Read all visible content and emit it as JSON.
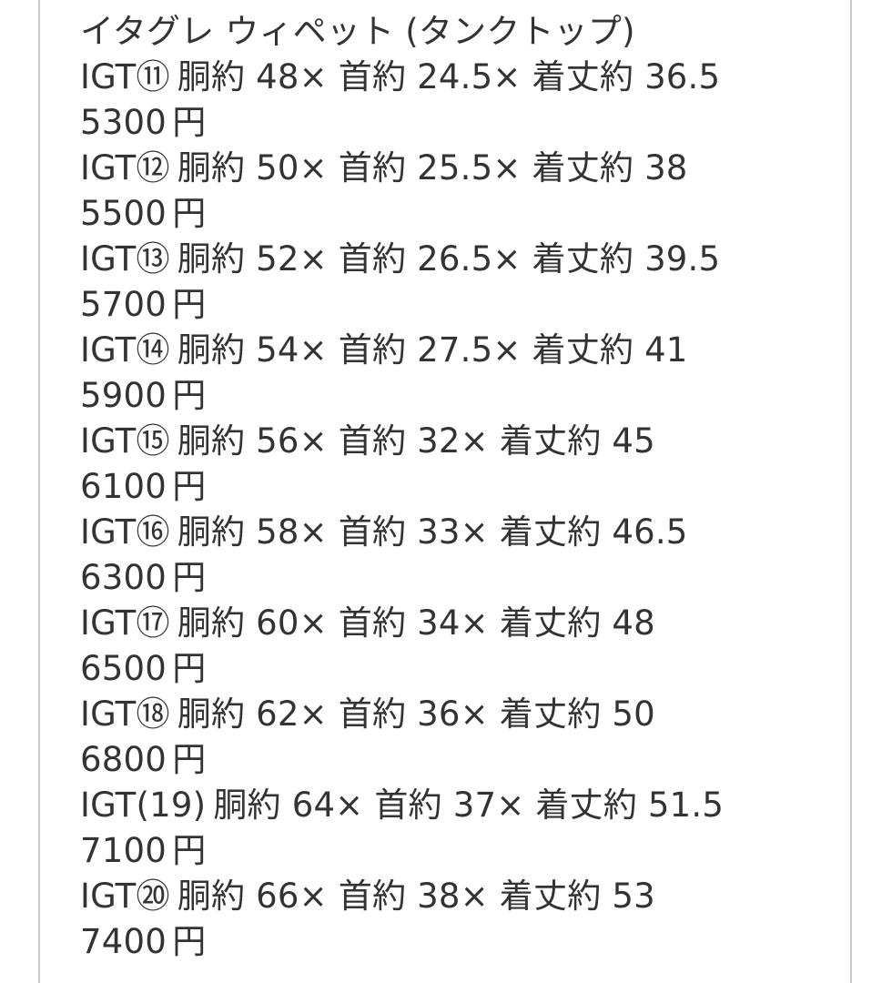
{
  "listing": {
    "title": "イタグレ ウィペット (タンクトップ)",
    "price_suffix": "円",
    "items": [
      {
        "id": "IGT⑪",
        "spec": "胴約 48× 首約 24.5× 着丈約 36.5",
        "price": "5300"
      },
      {
        "id": "IGT⑫",
        "spec": "胴約 50× 首約 25.5× 着丈約 38",
        "price": "5500"
      },
      {
        "id": "IGT⑬",
        "spec": "胴約 52× 首約 26.5× 着丈約 39.5",
        "price": "5700"
      },
      {
        "id": "IGT⑭",
        "spec": "胴約 54× 首約 27.5× 着丈約 41",
        "price": "5900"
      },
      {
        "id": "IGT⑮",
        "spec": "胴約 56× 首約 32× 着丈約 45",
        "price": "6100"
      },
      {
        "id": "IGT⑯",
        "spec": "胴約 58× 首約 33× 着丈約 46.5",
        "price": "6300"
      },
      {
        "id": "IGT⑰",
        "spec": "胴約 60× 首約 34× 着丈約 48",
        "price": "6500"
      },
      {
        "id": "IGT⑱",
        "spec": "胴約 62× 首約 36× 着丈約 50",
        "price": "6800"
      },
      {
        "id": "IGT(19)",
        "spec": "胴約 64× 首約 37× 着丈約 51.5",
        "price": "7100"
      },
      {
        "id": "IGT⑳",
        "spec": "胴約 66× 首約 38× 着丈約 53",
        "price": "7400"
      }
    ],
    "colors": {
      "text": "#333333",
      "border": "#c9c9c9",
      "background": "#ffffff"
    }
  }
}
